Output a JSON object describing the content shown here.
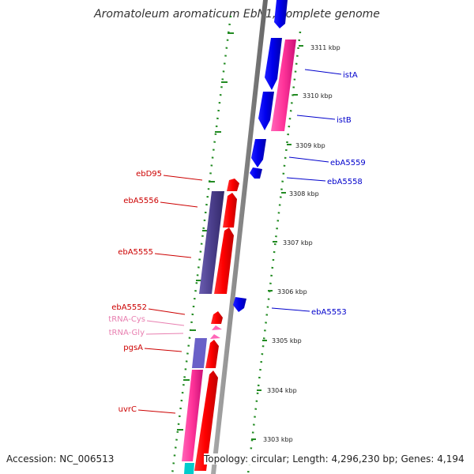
{
  "title": "Aromatoleum aromaticum EbN1, complete genome",
  "footer": {
    "accession": "Accession: NC_006513",
    "summary": "Topology: circular; Length: 4,296,230 bp; Genes: 4,194"
  },
  "scale_labels": [
    "3311 kbp",
    "3310 kbp",
    "3309 kbp",
    "3308 kbp",
    "3307 kbp",
    "3306 kbp",
    "3305 kbp",
    "3304 kbp",
    "3303 kbp"
  ],
  "genes_right": [
    {
      "name": "istA",
      "color": "#0000cc"
    },
    {
      "name": "istB",
      "color": "#0000cc"
    },
    {
      "name": "ebA5559",
      "color": "#0000cc"
    },
    {
      "name": "ebA5558",
      "color": "#0000cc"
    },
    {
      "name": "ebA5553",
      "color": "#0000cc"
    }
  ],
  "genes_left": [
    {
      "name": "ebD95",
      "color": "#cc0000"
    },
    {
      "name": "ebA5556",
      "color": "#cc0000"
    },
    {
      "name": "ebA5555",
      "color": "#cc0000"
    },
    {
      "name": "ebA5552",
      "color": "#cc0000"
    },
    {
      "name": "tRNA-Cys",
      "color": "#e87fb0"
    },
    {
      "name": "tRNA-Gly",
      "color": "#e87fb0"
    },
    {
      "name": "pgsA",
      "color": "#cc0000"
    },
    {
      "name": "uvrC",
      "color": "#cc0000"
    }
  ],
  "colors": {
    "backbone": "#888888",
    "tick": "#228B22",
    "forward_gene": "#0000ff",
    "reverse_gene": "#ff0000",
    "purple_gene": "#4b3f8c",
    "pink_gene": "#ff3399",
    "cyan_gene": "#00cccc"
  }
}
